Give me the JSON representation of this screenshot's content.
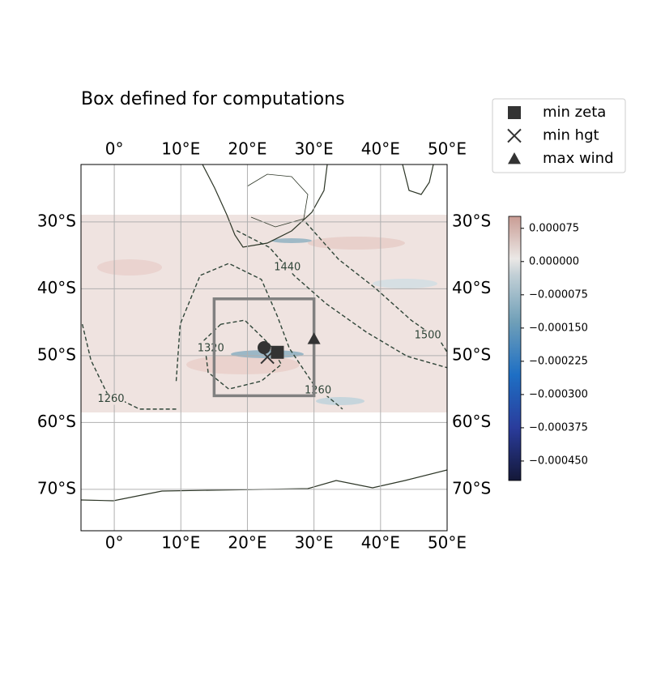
{
  "chart_data": {
    "type": "map",
    "title": "Box defined for computations",
    "xlim": [
      -5,
      50
    ],
    "ylim": [
      -76.2,
      -21.4
    ],
    "xticks": [
      {
        "value": 0,
        "label": "0°"
      },
      {
        "value": 10,
        "label": "10°E"
      },
      {
        "value": 20,
        "label": "20°E"
      },
      {
        "value": 30,
        "label": "30°E"
      },
      {
        "value": 40,
        "label": "40°E"
      },
      {
        "value": 50,
        "label": "50°E"
      }
    ],
    "yticks": [
      {
        "value": -30,
        "label": "30°S"
      },
      {
        "value": -40,
        "label": "40°S"
      },
      {
        "value": -50,
        "label": "50°S"
      },
      {
        "value": -60,
        "label": "60°S"
      },
      {
        "value": -70,
        "label": "70°S"
      }
    ],
    "grid": true,
    "box": {
      "x": [
        15,
        30
      ],
      "y": [
        -56,
        -41.5
      ],
      "color": "#808080"
    },
    "contours": [
      {
        "level": 1260,
        "x": [
          -4.8,
          -3.5,
          -1.1,
          3.8,
          9.3
        ],
        "y": [
          -45.3,
          -50.7,
          -55.6,
          -58.0,
          -58.0
        ],
        "label_x": -0.5,
        "label_y": -56.5
      },
      {
        "level": 1320,
        "x": [
          16.0,
          13.5,
          14.1,
          17.2,
          22.1,
          25.1,
          23.3,
          19.6,
          16.0
        ],
        "y": [
          -45.3,
          -47.7,
          -52.5,
          -55.0,
          -53.8,
          -51.3,
          -48.3,
          -44.7,
          -45.3
        ],
        "label_x": 14.5,
        "label_y": -48.9
      },
      {
        "level": 1260,
        "x": [
          9.3,
          9.9,
          12.9,
          17.2,
          22.1,
          24.5,
          26.3,
          30.0,
          34.3
        ],
        "y": [
          -53.8,
          -45.3,
          -38.0,
          -36.2,
          -38.6,
          -44.1,
          -48.9,
          -54.4,
          -58.0
        ],
        "label_x": 30.6,
        "label_y": -55.2
      },
      {
        "level": 1440,
        "x": [
          18.4,
          23.3,
          27.0,
          31.8,
          37.9,
          44.0,
          50.0
        ],
        "y": [
          -31.3,
          -33.8,
          -38.0,
          -42.2,
          -46.5,
          -50.1,
          -51.8
        ],
        "label_x": 26.0,
        "label_y": -36.8
      },
      {
        "level": 1500,
        "x": [
          28.8,
          33.7,
          39.1,
          44.6,
          48.9,
          50.0
        ],
        "y": [
          -30.1,
          -35.6,
          -39.8,
          -44.7,
          -47.7,
          -49.5
        ],
        "label_x": 47.1,
        "label_y": -47.0
      }
    ],
    "series": [
      {
        "name": "min zeta",
        "marker": "square",
        "color": "#333333",
        "x": [
          24.5
        ],
        "y": [
          -49.5
        ]
      },
      {
        "name": "min hgt",
        "marker": "x",
        "color": "#333333",
        "x": [
          23
        ],
        "y": [
          -50.2
        ]
      },
      {
        "name": "max wind",
        "marker": "triangle",
        "color": "#333333",
        "x": [
          30
        ],
        "y": [
          -47.5
        ]
      },
      {
        "marker": "circle",
        "color": "#333333",
        "x": [
          22.5
        ],
        "y": [
          -48.8
        ]
      }
    ],
    "colorbar": {
      "clim": [
        -0.000494,
        0.000102
      ],
      "ticks": [
        {
          "value": 7.5e-05,
          "label": "0.000075"
        },
        {
          "value": 0,
          "label": "0.000000"
        },
        {
          "value": -7.5e-05,
          "label": "−0.000075"
        },
        {
          "value": -0.00015,
          "label": "−0.000150"
        },
        {
          "value": -0.000225,
          "label": "−0.000225"
        },
        {
          "value": -0.0003,
          "label": "−0.000300"
        },
        {
          "value": -0.000375,
          "label": "−0.000375"
        },
        {
          "value": -0.00045,
          "label": "−0.000450"
        }
      ]
    }
  }
}
